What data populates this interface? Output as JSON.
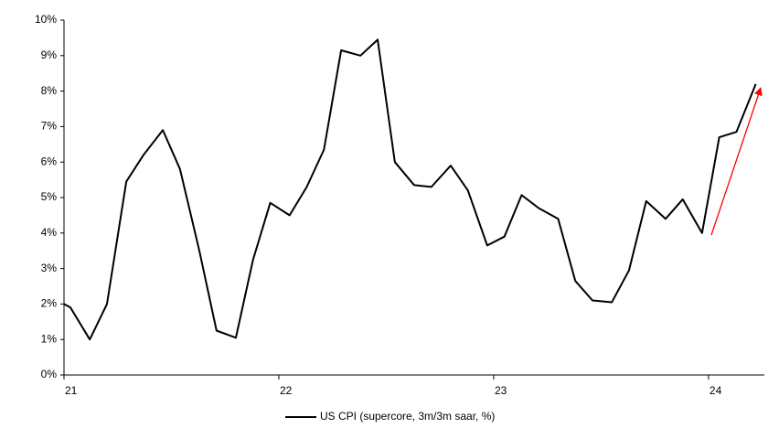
{
  "chart_data": {
    "type": "line",
    "x": [
      21.0,
      21.03,
      21.12,
      21.2,
      21.29,
      21.37,
      21.46,
      21.54,
      21.63,
      21.71,
      21.8,
      21.88,
      21.96,
      22.05,
      22.13,
      22.21,
      22.29,
      22.38,
      22.46,
      22.54,
      22.63,
      22.71,
      22.8,
      22.88,
      22.97,
      23.05,
      23.13,
      23.21,
      23.3,
      23.38,
      23.46,
      23.55,
      23.63,
      23.71,
      23.8,
      23.88,
      23.97,
      24.05,
      24.13,
      24.22
    ],
    "series": [
      {
        "name": "US CPI (supercore, 3m/3m saar, %)",
        "color": "#000000",
        "values": [
          2.0,
          1.9,
          1.0,
          2.0,
          5.45,
          6.2,
          6.9,
          5.8,
          3.5,
          1.25,
          1.05,
          3.25,
          4.85,
          4.5,
          5.3,
          6.35,
          9.15,
          9.0,
          9.45,
          6.0,
          5.35,
          5.3,
          5.9,
          5.2,
          3.65,
          3.9,
          5.07,
          4.7,
          4.4,
          2.65,
          2.1,
          2.05,
          2.95,
          4.9,
          4.4,
          4.95,
          4.0,
          6.7,
          6.85,
          8.2
        ]
      }
    ],
    "xlim": [
      21,
      24.26
    ],
    "xticks": [
      21,
      22,
      23,
      24
    ],
    "ylim": [
      0,
      10
    ],
    "yticks": [
      {
        "value": 0,
        "label": "0%"
      },
      {
        "value": 1,
        "label": "1%"
      },
      {
        "value": 2,
        "label": "2%"
      },
      {
        "value": 3,
        "label": "3%"
      },
      {
        "value": 4,
        "label": "4%"
      },
      {
        "value": 5,
        "label": "5%"
      },
      {
        "value": 6,
        "label": "6%"
      },
      {
        "value": 7,
        "label": "7%"
      },
      {
        "value": 8,
        "label": "8%"
      },
      {
        "value": 9,
        "label": "9%"
      },
      {
        "value": 10,
        "label": "10%"
      }
    ],
    "grid": false
  }
}
